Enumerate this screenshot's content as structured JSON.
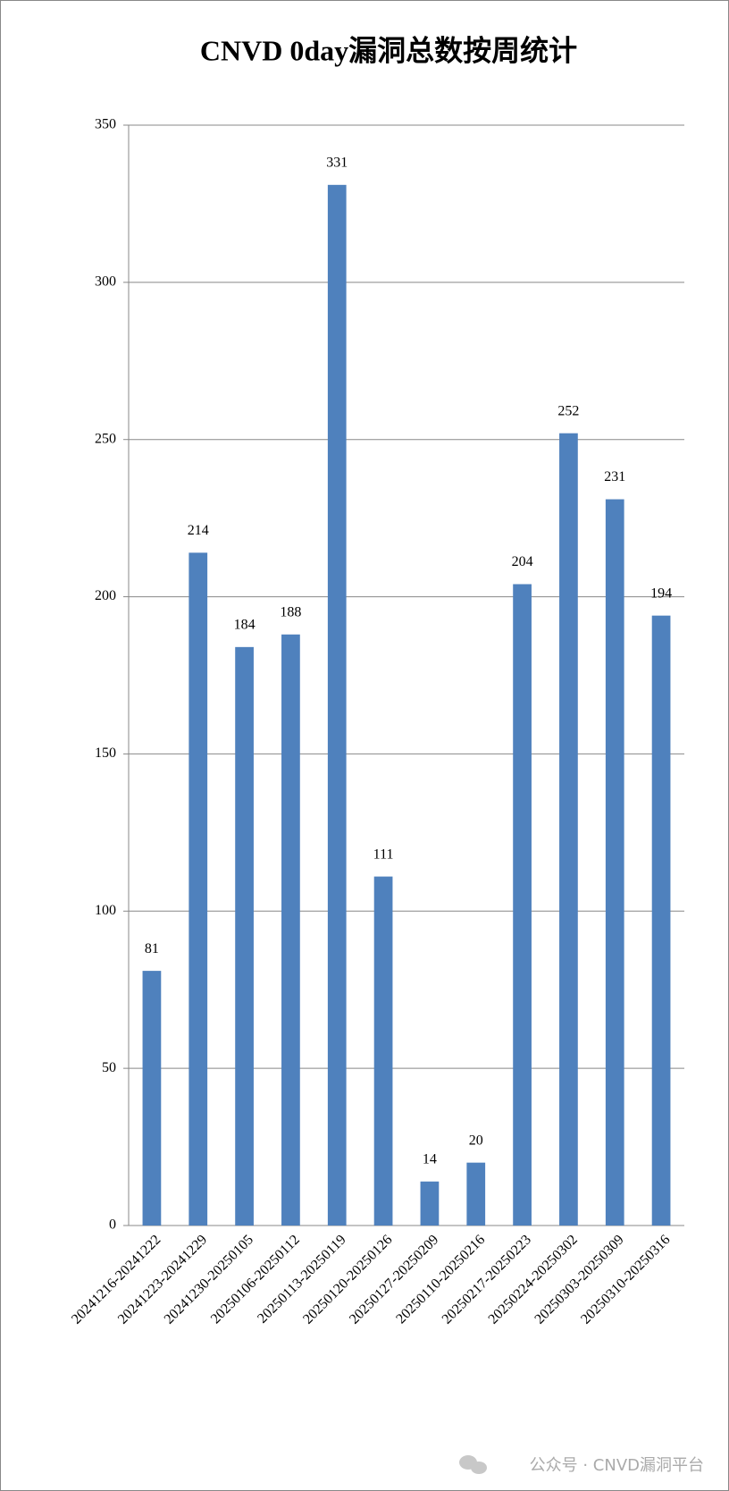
{
  "chart_data": {
    "type": "bar",
    "title": "CNVD 0day漏洞总数按周统计",
    "categories": [
      "20241216-20241222",
      "20241223-20241229",
      "20241230-20250105",
      "20250106-20250112",
      "20250113-20250119",
      "20250120-20250126",
      "20250127-20250209",
      "20250110-20250216",
      "20250217-20250223",
      "20250224-20250302",
      "20250303-20250309",
      "20250310-20250316"
    ],
    "values": [
      81,
      214,
      184,
      188,
      331,
      111,
      14,
      20,
      204,
      252,
      231,
      194
    ],
    "color": "#4f81bd",
    "ylim": [
      0,
      350
    ],
    "yticks": [
      0,
      50,
      100,
      150,
      200,
      250,
      300,
      350
    ],
    "grid": true
  },
  "watermark": "公众号 · CNVD漏洞平台"
}
